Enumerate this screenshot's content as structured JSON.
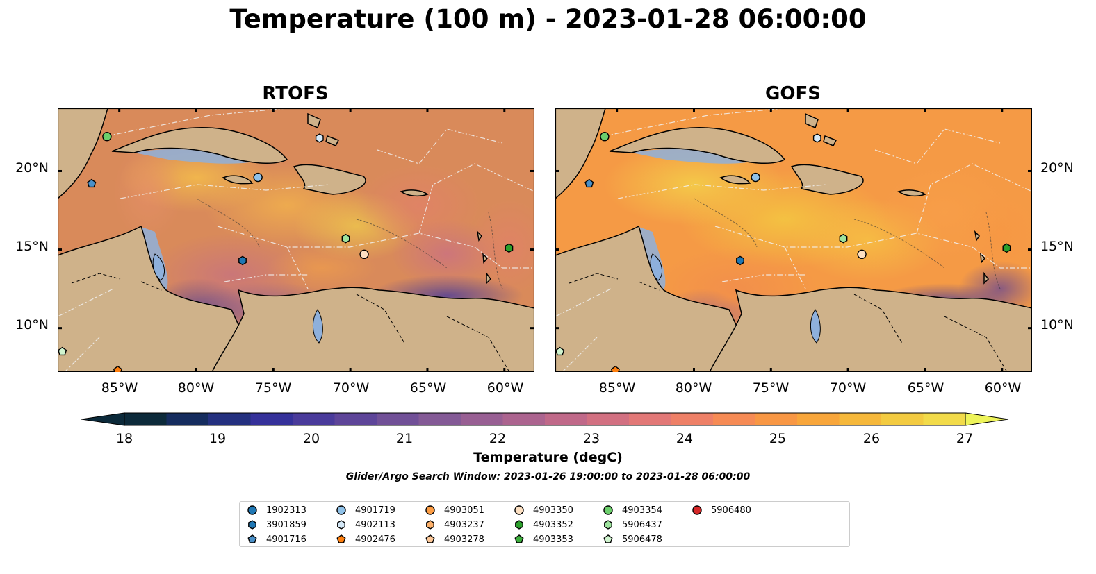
{
  "title": "Temperature (100 m) - 2023-01-28 06:00:00",
  "panels": [
    {
      "title": "RTOFS"
    },
    {
      "title": "GOFS"
    }
  ],
  "lat_ticks": [
    "20°N",
    "15°N",
    "10°N"
  ],
  "lon_ticks": [
    "85°W",
    "80°W",
    "75°W",
    "70°W",
    "65°W",
    "60°W"
  ],
  "colorbar": {
    "label": "Temperature (degC)",
    "ticks": [
      "18",
      "19",
      "20",
      "21",
      "22",
      "23",
      "24",
      "25",
      "26",
      "27"
    ],
    "colors": [
      "#0c2a3a",
      "#152c5e",
      "#24307f",
      "#35319a",
      "#4a3b9b",
      "#5e4599",
      "#715097",
      "#845a96",
      "#985f93",
      "#ac648f",
      "#c06989",
      "#d27081",
      "#e27877",
      "#ee8067",
      "#f68b55",
      "#f89744",
      "#f8a63b",
      "#f6b83b",
      "#f3cb41",
      "#f2db4a"
    ],
    "over_color": "#eef45a"
  },
  "search_window": "Glider/Argo Search Window: 2023-01-26 19:00:00 to 2023-01-28 06:00:00",
  "legend": [
    {
      "label": "1902313",
      "marker": "circle",
      "color": "#1f77b4"
    },
    {
      "label": "3901859",
      "marker": "hexagon",
      "color": "#1f77b4"
    },
    {
      "label": "4901716",
      "marker": "pentagon",
      "color": "#4a90c8"
    },
    {
      "label": "4901719",
      "marker": "circle",
      "color": "#8fc1e8"
    },
    {
      "label": "4902113",
      "marker": "hexagon",
      "color": "#d4e8f7"
    },
    {
      "label": "4902476",
      "marker": "pentagon",
      "color": "#ff7f0e"
    },
    {
      "label": "4903051",
      "marker": "circle",
      "color": "#fd9d44"
    },
    {
      "label": "4903237",
      "marker": "hexagon",
      "color": "#fdb16b"
    },
    {
      "label": "4903278",
      "marker": "pentagon",
      "color": "#fdc898"
    },
    {
      "label": "4903350",
      "marker": "circle",
      "color": "#fde0c2"
    },
    {
      "label": "4903352",
      "marker": "hexagon",
      "color": "#2ca02c"
    },
    {
      "label": "4903353",
      "marker": "pentagon",
      "color": "#3cae3c"
    },
    {
      "label": "4903354",
      "marker": "circle",
      "color": "#6ccf6c"
    },
    {
      "label": "5906437",
      "marker": "hexagon",
      "color": "#9ee39e"
    },
    {
      "label": "5906478",
      "marker": "pentagon",
      "color": "#d0f4cf"
    },
    {
      "label": "5906480",
      "marker": "circle",
      "color": "#d62728"
    }
  ],
  "floats": [
    {
      "id": "4903354",
      "lon": -85.8,
      "lat": 22.2
    },
    {
      "id": "4901716",
      "lon": -86.8,
      "lat": 19.2
    },
    {
      "id": "4902113",
      "lon": -72.0,
      "lat": 22.1
    },
    {
      "id": "4901719",
      "lon": -76.0,
      "lat": 19.6
    },
    {
      "id": "3901859",
      "lon": -77.0,
      "lat": 14.3
    },
    {
      "id": "5906437",
      "lon": -70.3,
      "lat": 15.7
    },
    {
      "id": "4903350",
      "lon": -69.1,
      "lat": 14.7
    },
    {
      "id": "4903352",
      "lon": -59.7,
      "lat": 15.1
    },
    {
      "id": "5906478",
      "lon": -88.7,
      "lat": 8.5
    },
    {
      "id": "4902476",
      "lon": -85.1,
      "lat": 7.3
    }
  ],
  "colors": {
    "land": "#cfb28a",
    "lake": "#8eb0dc",
    "pacific": "#072433"
  }
}
